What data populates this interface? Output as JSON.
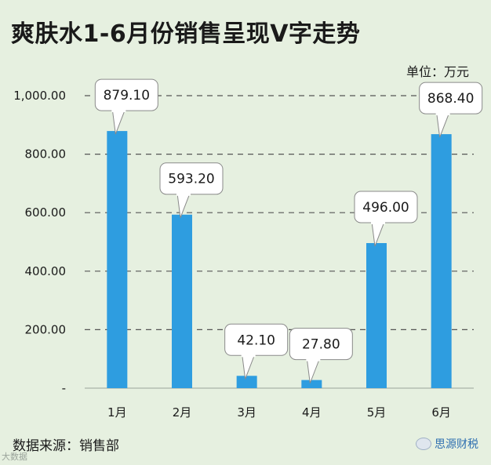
{
  "title": "爽肤水1-6月份销售呈现V字走势",
  "unit": "单位：万元",
  "source": "数据来源：销售部",
  "watermark": "大数据",
  "brand": "思源财税",
  "colors": {
    "bar": "#2e9de0",
    "grid": "#555555",
    "background": "#e6f0e0"
  },
  "chart_data": {
    "type": "bar",
    "categories": [
      "1月",
      "2月",
      "3月",
      "4月",
      "5月",
      "6月"
    ],
    "values": [
      879.1,
      593.2,
      42.1,
      27.8,
      496.0,
      868.4
    ],
    "value_labels": [
      "879.10",
      "593.20",
      "42.10",
      "27.80",
      "496.00",
      "868.40"
    ],
    "ylim": [
      0,
      1000
    ],
    "yticks": [
      0,
      200,
      400,
      600,
      800,
      1000
    ],
    "ytick_labels": [
      "-",
      "200.00",
      "400.00",
      "600.00",
      "800.00",
      "1,000.00"
    ],
    "grid": true
  }
}
